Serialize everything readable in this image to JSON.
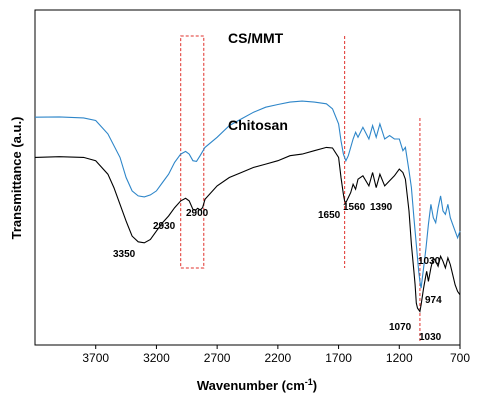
{
  "chart_data": {
    "type": "line",
    "title": "",
    "xlabel": "Wavenumber (cm",
    "xlabel_sup": "-1",
    "xlabel_close": ")",
    "ylabel": "Transmittance (a.u.)",
    "xlim": [
      4200,
      700
    ],
    "x_reversed": true,
    "y_ticks_shown": false,
    "grid": false,
    "legend": "none",
    "x_ticks": [
      "3700",
      "3200",
      "2700",
      "2200",
      "1700",
      "1200",
      "700"
    ],
    "series": [
      {
        "name": "CS/MMT",
        "color": "#2e86c9",
        "x": [
          4200,
          4000,
          3800,
          3700,
          3600,
          3500,
          3450,
          3400,
          3350,
          3300,
          3250,
          3200,
          3150,
          3100,
          3050,
          3000,
          2960,
          2930,
          2900,
          2870,
          2840,
          2800,
          2700,
          2600,
          2500,
          2400,
          2300,
          2200,
          2100,
          2000,
          1900,
          1800,
          1750,
          1700,
          1680,
          1660,
          1650,
          1640,
          1620,
          1600,
          1580,
          1560,
          1540,
          1500,
          1450,
          1420,
          1390,
          1360,
          1320,
          1280,
          1240,
          1200,
          1170,
          1150,
          1120,
          1100,
          1080,
          1060,
          1040,
          1030,
          1020,
          1000,
          980,
          960,
          940,
          920,
          900,
          880,
          860,
          840,
          820,
          800,
          780,
          760,
          740,
          720,
          700
        ],
        "y": [
          68.0,
          68.1,
          67.8,
          67.0,
          63.0,
          56.0,
          50.0,
          46.0,
          44.5,
          44.2,
          44.8,
          46.0,
          48.5,
          51.0,
          54.5,
          57.0,
          57.8,
          57.0,
          55.0,
          54.8,
          56.5,
          59.0,
          62.0,
          65.5,
          67.5,
          69.5,
          71.0,
          71.8,
          72.5,
          72.8,
          72.5,
          72.0,
          70.5,
          66.0,
          61.0,
          57.0,
          56.0,
          55.0,
          56.5,
          59.0,
          61.5,
          63.5,
          62.0,
          65.0,
          61.5,
          65.5,
          62.0,
          66.0,
          61.5,
          62.5,
          61.5,
          61.5,
          58.0,
          59.0,
          52.0,
          47.0,
          38.0,
          30.0,
          22.0,
          19.0,
          17.0,
          23.0,
          29.0,
          36.0,
          42.0,
          38.0,
          36.5,
          41.0,
          44.5,
          40.0,
          39.0,
          42.0,
          38.0,
          36.0,
          34.0,
          32.0,
          34.0
        ]
      },
      {
        "name": "Chitosan",
        "color": "#000000",
        "x": [
          4200,
          4000,
          3800,
          3700,
          3600,
          3550,
          3500,
          3450,
          3400,
          3350,
          3300,
          3250,
          3200,
          3150,
          3100,
          3050,
          3000,
          2960,
          2930,
          2900,
          2880,
          2860,
          2840,
          2820,
          2800,
          2700,
          2600,
          2500,
          2400,
          2300,
          2200,
          2100,
          2000,
          1900,
          1800,
          1750,
          1700,
          1680,
          1660,
          1650,
          1640,
          1620,
          1600,
          1580,
          1560,
          1540,
          1500,
          1450,
          1420,
          1390,
          1360,
          1320,
          1280,
          1240,
          1200,
          1170,
          1150,
          1120,
          1100,
          1080,
          1070,
          1060,
          1050,
          1040,
          1030,
          1020,
          1000,
          980,
          974,
          960,
          940,
          920,
          900,
          880,
          860,
          840,
          820,
          800,
          780,
          760,
          740,
          720,
          700
        ],
        "y": [
          56.0,
          56.2,
          56.0,
          55.0,
          51.0,
          47.0,
          42.0,
          37.0,
          32.5,
          30.8,
          30.5,
          31.5,
          34.0,
          36.5,
          38.5,
          41.0,
          43.0,
          43.8,
          43.0,
          40.5,
          40.2,
          40.8,
          40.3,
          41.0,
          43.5,
          47.5,
          50.0,
          51.5,
          53.0,
          54.0,
          55.0,
          56.5,
          57.0,
          58.0,
          59.0,
          58.8,
          56.0,
          50.0,
          45.0,
          43.0,
          42.5,
          44.0,
          45.5,
          48.0,
          46.5,
          49.5,
          50.5,
          47.5,
          51.5,
          47.0,
          51.0,
          47.5,
          49.0,
          50.5,
          52.5,
          51.5,
          49.5,
          40.0,
          30.0,
          22.0,
          18.0,
          12.5,
          11.0,
          10.5,
          10.0,
          12.0,
          17.0,
          21.0,
          22.0,
          19.0,
          23.0,
          26.0,
          25.0,
          23.5,
          26.5,
          25.0,
          23.0,
          26.0,
          24.0,
          21.0,
          18.0,
          16.0,
          15.0
        ]
      }
    ],
    "series_labels": [
      "CS/MMT",
      "Chitosan"
    ],
    "annotations": {
      "peaks": [
        "3350",
        "2930",
        "2900",
        "1650",
        "1560",
        "1390",
        "1030",
        "1070",
        "974",
        "1030"
      ],
      "dashed_box": {
        "x_from": 3000,
        "x_to": 2810
      },
      "dashed_lines": [
        1650,
        1030
      ]
    }
  }
}
